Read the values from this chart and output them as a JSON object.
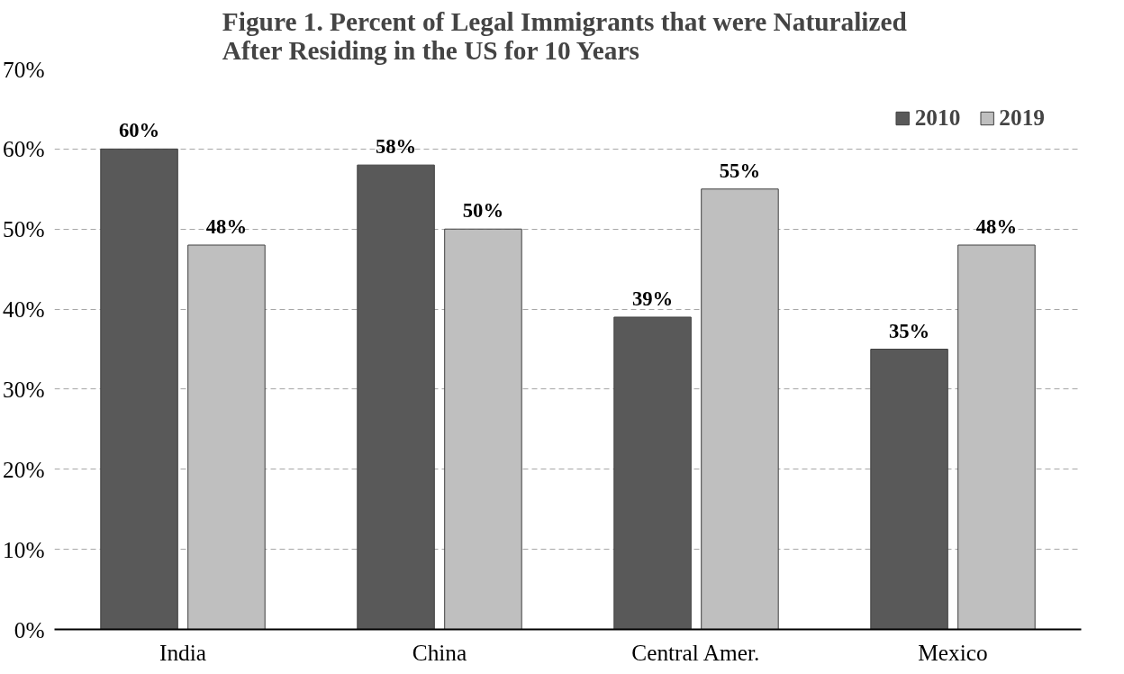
{
  "chart_data": {
    "type": "bar",
    "title": "Figure 1. Percent of Legal Immigrants  that were Naturalized\nAfter Residing  in the US for 10 Years",
    "categories": [
      "India",
      "China",
      "Central Amer.",
      "Mexico"
    ],
    "series": [
      {
        "name": "2010",
        "color": "#595959",
        "values": [
          60,
          58,
          39,
          35
        ],
        "value_labels": [
          "60%",
          "58%",
          "39%",
          "35%"
        ]
      },
      {
        "name": "2019",
        "color": "#bfbfbf",
        "values": [
          48,
          50,
          55,
          48
        ],
        "value_labels": [
          "48%",
          "50%",
          "55%",
          "48%"
        ]
      }
    ],
    "ylim": [
      0,
      70
    ],
    "yticks": [
      {
        "value": 0,
        "label": "0%"
      },
      {
        "value": 10,
        "label": "10%"
      },
      {
        "value": 20,
        "label": "20%"
      },
      {
        "value": 30,
        "label": "30%"
      },
      {
        "value": 40,
        "label": "40%"
      },
      {
        "value": 50,
        "label": "50%"
      },
      {
        "value": 60,
        "label": "60%"
      },
      {
        "value": 70,
        "label": "70%"
      }
    ],
    "grid": "y",
    "legend": "top right"
  }
}
